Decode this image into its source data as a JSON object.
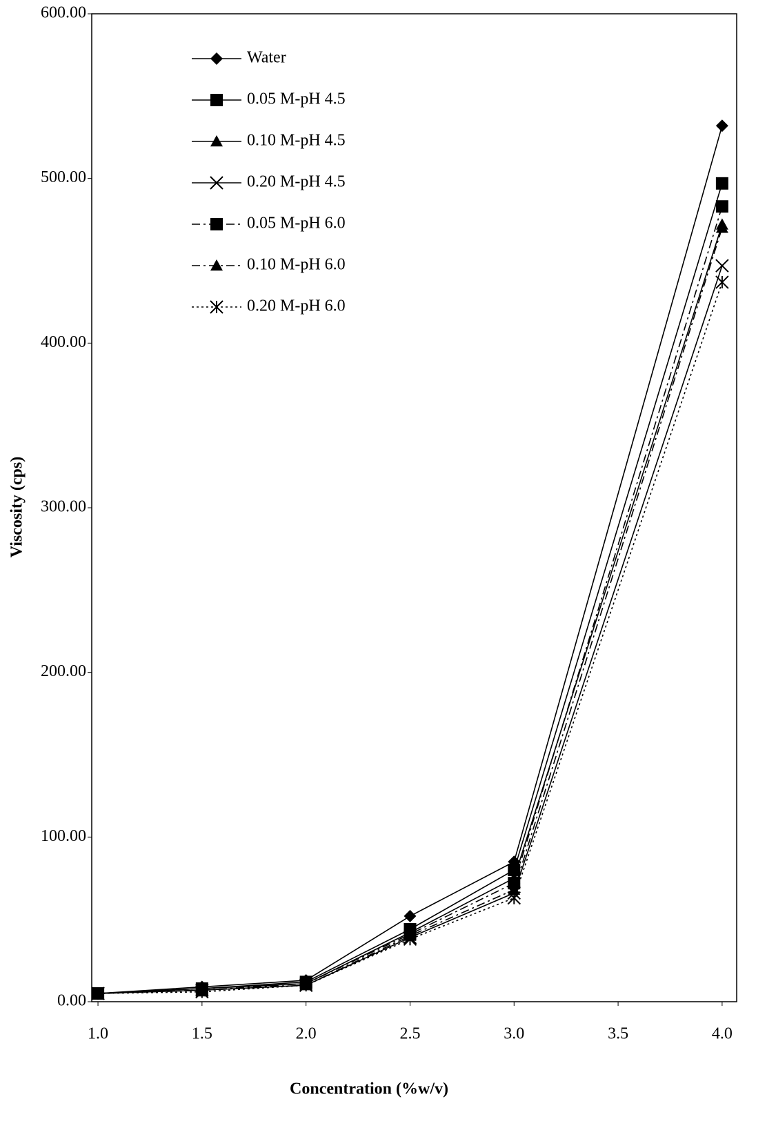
{
  "chart_data": {
    "type": "line",
    "x_label": "Concentration (%w/v)",
    "y_label": "Viscosity (cps)",
    "x": [
      1.0,
      1.5,
      2.0,
      2.5,
      3.0,
      4.0
    ],
    "xlim": [
      0.97,
      4.07
    ],
    "xticks": [
      {
        "value": 1,
        "label": "1.0"
      },
      1.5,
      {
        "value": 2,
        "label": "2.0"
      },
      2.5,
      {
        "value": 3,
        "label": "3.0"
      },
      3.5,
      {
        "value": 4,
        "label": "4.0"
      }
    ],
    "ylim": [
      0,
      600
    ],
    "yticks": [
      {
        "value": 0,
        "label": "0.00"
      },
      {
        "value": 100,
        "label": "100.00"
      },
      {
        "value": 200,
        "label": "200.00"
      },
      {
        "value": 300,
        "label": "300.00"
      },
      {
        "value": 400,
        "label": "400.00"
      },
      {
        "value": 500,
        "label": "500.00"
      },
      {
        "value": 600,
        "label": "600.00"
      }
    ],
    "grid": false,
    "legend": "upper-left",
    "series": [
      {
        "name": "Water",
        "color": "#000000",
        "marker": "diamond",
        "dash": "solid",
        "values": [
          5,
          9,
          13,
          52,
          85,
          532
        ]
      },
      {
        "name": "0.05 M-pH 4.5",
        "color": "#000000",
        "marker": "square",
        "dash": "solid",
        "values": [
          5,
          8,
          12,
          44,
          80,
          497
        ]
      },
      {
        "name": "0.10 M-pH 4.5",
        "color": "#000000",
        "marker": "triangle",
        "dash": "solid",
        "values": [
          5,
          8,
          11,
          42,
          75,
          472
        ]
      },
      {
        "name": "0.20 M-pH 4.5",
        "color": "#000000",
        "marker": "cross",
        "dash": "solid",
        "values": [
          5,
          7,
          10,
          39,
          66,
          447
        ]
      },
      {
        "name": "0.05 M-pH 6.0",
        "color": "#000000",
        "marker": "square",
        "dash": "dashdot",
        "values": [
          5,
          7,
          11,
          41,
          72,
          483
        ]
      },
      {
        "name": "0.10 M-pH 6.0",
        "color": "#000000",
        "marker": "triangle",
        "dash": "dashdot",
        "values": [
          5,
          7,
          10,
          40,
          68,
          470
        ]
      },
      {
        "name": "0.20 M-pH 6.0",
        "color": "#000000",
        "marker": "star",
        "dash": "dotted",
        "values": [
          5,
          6,
          10,
          38,
          63,
          437
        ]
      }
    ]
  }
}
